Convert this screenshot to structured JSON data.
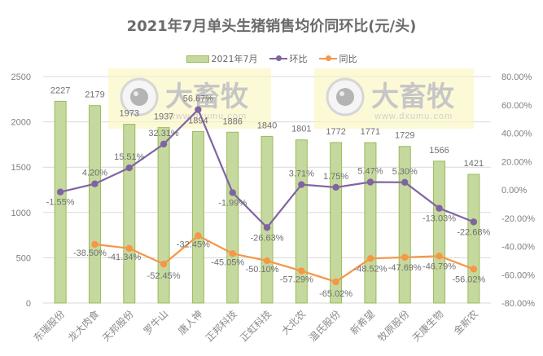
{
  "chart_data": {
    "type": "bar",
    "title": "2021年7月单头生猪销售均价同环比(元/头)",
    "xlabel": "",
    "ylabel": "",
    "categories": [
      "东瑞股份",
      "龙大肉食",
      "天邦股份",
      "罗牛山",
      "唐人神",
      "正邦科技",
      "正虹科技",
      "大北农",
      "温氏股份",
      "新希望",
      "牧原股份",
      "天康生物",
      "金新农"
    ],
    "series": [
      {
        "name": "2021年7月",
        "type": "bar",
        "axis": "left",
        "color": "#c5d99e",
        "values": [
          2227,
          2179,
          1973,
          1937,
          1894,
          1886,
          1840,
          1801,
          1772,
          1771,
          1729,
          1566,
          1421
        ]
      },
      {
        "name": "环比",
        "type": "line",
        "axis": "right",
        "color": "#8064a2",
        "unit": "%",
        "values": [
          -1.55,
          4.2,
          15.51,
          32.31,
          56.67,
          -1.99,
          -26.63,
          3.71,
          1.75,
          5.47,
          5.3,
          -13.03,
          -22.68
        ]
      },
      {
        "name": "同比",
        "type": "line",
        "axis": "right",
        "color": "#f79646",
        "unit": "%",
        "values": [
          null,
          -38.5,
          -41.34,
          -52.45,
          -32.45,
          -45.05,
          -50.1,
          -57.29,
          -65.02,
          -48.52,
          -47.69,
          -46.79,
          -56.02
        ]
      }
    ],
    "ylim": [
      0,
      2500
    ],
    "y_ticks": [
      0,
      500,
      1000,
      1500,
      2000,
      2500
    ],
    "y2lim": [
      -80,
      80
    ],
    "y2_ticks": [
      "80.00%",
      "60.00%",
      "40.00%",
      "20.00%",
      "0.00%",
      "-20.00%",
      "-40.00%",
      "-60.00%",
      "-80.00%"
    ],
    "grid": true,
    "legend_position": "top"
  },
  "title": "2021年7月单头生猪销售均价同环比(元/头)",
  "legend": {
    "bar_label": "2021年7月",
    "line1_label": "环比",
    "line2_label": "同比"
  },
  "colors": {
    "bar_fill": "#c5d99e",
    "bar_border": "#9bbb59",
    "hb_line": "#8064a2",
    "tb_line": "#f79646",
    "axis_text": "#7f7f7f",
    "grid": "#d9d9d9"
  },
  "watermark": {
    "brand": "大畜牧",
    "url": "www.dxumu.com"
  }
}
